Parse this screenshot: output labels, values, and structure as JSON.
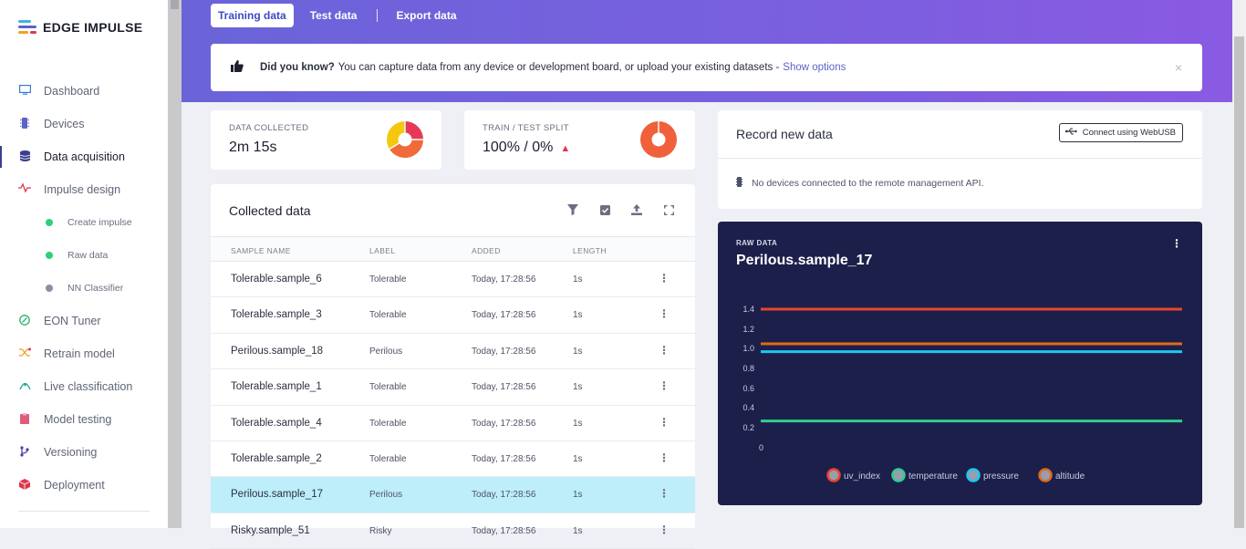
{
  "app": {
    "logo_text": "EDGE IMPULSE"
  },
  "sidebar": {
    "items": [
      {
        "label": "Dashboard",
        "icon": "monitor-icon",
        "color": "#3a7bd5"
      },
      {
        "label": "Devices",
        "icon": "chip-icon",
        "color": "#5b63c7"
      },
      {
        "label": "Data acquisition",
        "icon": "database-icon",
        "color": "#3b3f8f",
        "active": true
      },
      {
        "label": "Impulse design",
        "icon": "pulse-icon",
        "color": "#e0374c"
      }
    ],
    "subitems": [
      {
        "label": "Create impulse",
        "color": "#2fcf7a"
      },
      {
        "label": "Raw data",
        "color": "#2fcf7a"
      },
      {
        "label": "NN Classifier",
        "color": "#8a8fa3"
      }
    ],
    "items2": [
      {
        "label": "EON Tuner",
        "icon": "tuner-icon",
        "color": "#2fb36a"
      },
      {
        "label": "Retrain model",
        "icon": "shuffle-icon",
        "color": "#f0a020"
      },
      {
        "label": "Live classification",
        "icon": "live-icon",
        "color": "#1fa88a"
      },
      {
        "label": "Model testing",
        "icon": "clipboard-icon",
        "color": "#e05a7a"
      },
      {
        "label": "Versioning",
        "icon": "branch-icon",
        "color": "#4b3fa8"
      },
      {
        "label": "Deployment",
        "icon": "cube-icon",
        "color": "#e0374c"
      }
    ]
  },
  "tabs": {
    "training": "Training data",
    "test": "Test data",
    "export": "Export data"
  },
  "tip": {
    "bold": "Did you know?",
    "text": "You can capture data from any device or development board, or upload your existing datasets -",
    "link": "Show options",
    "close": "×"
  },
  "stats": {
    "collected_label": "DATA COLLECTED",
    "collected_value": "2m 15s",
    "split_label": "TRAIN / TEST SPLIT",
    "split_value": "100% / 0%"
  },
  "collected": {
    "title": "Collected data",
    "columns": [
      "SAMPLE NAME",
      "LABEL",
      "ADDED",
      "LENGTH"
    ],
    "rows": [
      {
        "name": "Tolerable.sample_6",
        "label": "Tolerable",
        "added": "Today, 17:28:56",
        "length": "1s"
      },
      {
        "name": "Tolerable.sample_3",
        "label": "Tolerable",
        "added": "Today, 17:28:56",
        "length": "1s"
      },
      {
        "name": "Perilous.sample_18",
        "label": "Perilous",
        "added": "Today, 17:28:56",
        "length": "1s"
      },
      {
        "name": "Tolerable.sample_1",
        "label": "Tolerable",
        "added": "Today, 17:28:56",
        "length": "1s"
      },
      {
        "name": "Tolerable.sample_4",
        "label": "Tolerable",
        "added": "Today, 17:28:56",
        "length": "1s"
      },
      {
        "name": "Tolerable.sample_2",
        "label": "Tolerable",
        "added": "Today, 17:28:56",
        "length": "1s"
      },
      {
        "name": "Perilous.sample_17",
        "label": "Perilous",
        "added": "Today, 17:28:56",
        "length": "1s",
        "selected": true
      },
      {
        "name": "Risky.sample_51",
        "label": "Risky",
        "added": "Today, 17:28:56",
        "length": "1s"
      }
    ]
  },
  "record": {
    "title": "Record new data",
    "webusb_label": "Connect using WebUSB",
    "no_devices": "No devices connected to the remote management API."
  },
  "raw": {
    "label": "RAW DATA",
    "title": "Perilous.sample_17"
  },
  "chart_data": {
    "type": "line",
    "ylim": [
      0,
      1.5
    ],
    "yticks": [
      "1.4",
      "1.2",
      "1.0",
      "0.8",
      "0.6",
      "0.4",
      "0.2",
      "0"
    ],
    "series": [
      {
        "name": "uv_index",
        "color": "#e8452c",
        "values": [
          1.4,
          1.4
        ]
      },
      {
        "name": "temperature",
        "color": "#2ecf8f",
        "values": [
          0.27,
          0.27
        ]
      },
      {
        "name": "pressure",
        "color": "#1fc8f0",
        "values": [
          0.97,
          0.97
        ]
      },
      {
        "name": "altitude",
        "color": "#e06a1a",
        "values": [
          1.05,
          1.05
        ]
      }
    ],
    "legend": "bottom"
  }
}
